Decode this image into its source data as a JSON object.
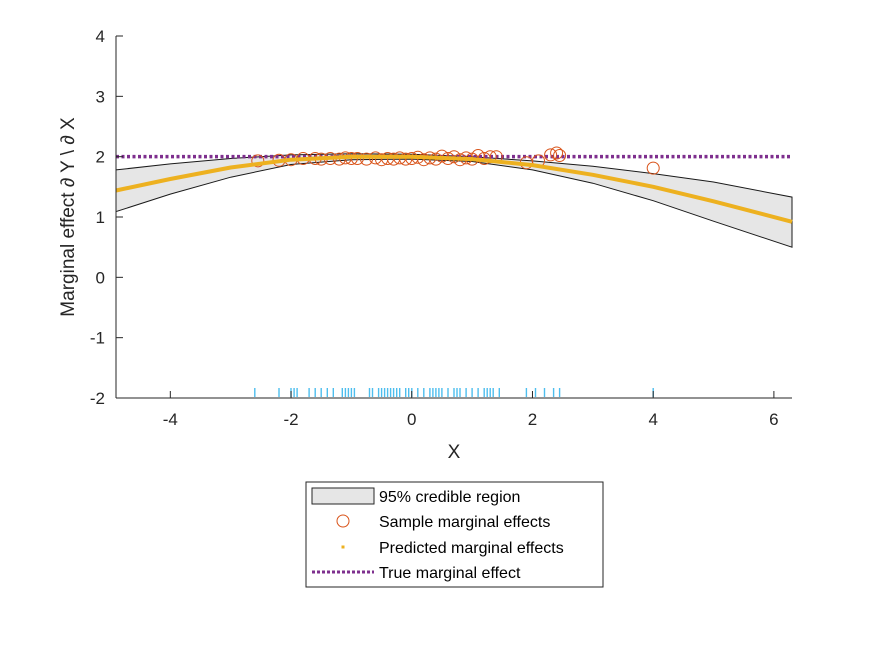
{
  "chart_data": {
    "type": "line",
    "xlabel": "X",
    "ylabel": "Marginal effect ∂ Y \\ ∂ X",
    "xlim": [
      -4.9,
      6.3
    ],
    "ylim": [
      -2,
      4
    ],
    "xticks": [
      -4,
      -2,
      0,
      2,
      4,
      6
    ],
    "yticks": [
      -2,
      -1,
      0,
      1,
      2,
      3,
      4
    ],
    "xtick_labels": [
      "-4",
      "-2",
      "0",
      "2",
      "4",
      "6"
    ],
    "ytick_labels": [
      "-2",
      "-1",
      "0",
      "1",
      "2",
      "3",
      "4"
    ],
    "grid": false,
    "legend_position": "below plot",
    "credible_region": {
      "name": "95% credible region",
      "color": "#e6e6e6",
      "x": [
        -4.9,
        -4.0,
        -3.0,
        -2.0,
        -1.0,
        0.0,
        1.0,
        2.0,
        3.0,
        4.0,
        5.0,
        6.3
      ],
      "upper": [
        1.78,
        1.88,
        1.97,
        2.03,
        2.05,
        2.04,
        2.0,
        1.93,
        1.84,
        1.72,
        1.58,
        1.33
      ],
      "lower": [
        1.09,
        1.38,
        1.66,
        1.87,
        1.95,
        1.96,
        1.92,
        1.78,
        1.56,
        1.27,
        0.93,
        0.5
      ]
    },
    "series": [
      {
        "name": "Predicted marginal effects",
        "color": "#edb120",
        "x": [
          -4.9,
          -4.0,
          -3.0,
          -2.0,
          -1.0,
          0.0,
          1.0,
          2.0,
          3.0,
          4.0,
          5.0,
          6.3
        ],
        "y": [
          1.44,
          1.63,
          1.82,
          1.95,
          2.0,
          2.0,
          1.96,
          1.86,
          1.7,
          1.5,
          1.26,
          0.92
        ]
      },
      {
        "name": "True marginal effect",
        "color": "#7e2f8e",
        "x": [
          -4.9,
          6.3
        ],
        "y": [
          2.0,
          2.0
        ]
      }
    ],
    "sample_points": {
      "name": "Sample marginal effects",
      "color": "#d95319",
      "x": [
        -2.55,
        -2.2,
        -2.0,
        -1.8,
        -1.6,
        -1.5,
        -1.35,
        -1.2,
        -1.1,
        -1.0,
        -0.9,
        -0.75,
        -0.6,
        -0.5,
        -0.4,
        -0.3,
        -0.2,
        -0.1,
        0.0,
        0.1,
        0.2,
        0.3,
        0.4,
        0.5,
        0.6,
        0.7,
        0.8,
        0.9,
        1.0,
        1.1,
        1.2,
        1.3,
        1.4,
        1.9,
        2.1,
        2.3,
        2.4,
        2.45,
        4.0
      ],
      "y": [
        1.93,
        1.94,
        1.95,
        1.97,
        1.97,
        1.96,
        1.97,
        1.96,
        1.98,
        1.97,
        1.97,
        1.96,
        1.98,
        1.95,
        1.97,
        1.96,
        1.98,
        1.96,
        1.97,
        1.99,
        1.95,
        1.98,
        1.96,
        2.01,
        1.97,
        2.0,
        1.95,
        1.98,
        1.96,
        2.02,
        1.97,
        2.0,
        2.0,
        1.9,
        1.93,
        2.03,
        2.06,
        2.02,
        1.81
      ]
    },
    "rug": {
      "color": "#4dbeee",
      "x": [
        -2.6,
        -2.2,
        -2.0,
        -1.95,
        -1.9,
        -1.7,
        -1.6,
        -1.5,
        -1.4,
        -1.3,
        -1.15,
        -1.1,
        -1.05,
        -1.0,
        -0.95,
        -0.7,
        -0.65,
        -0.55,
        -0.5,
        -0.45,
        -0.4,
        -0.35,
        -0.3,
        -0.25,
        -0.2,
        -0.1,
        -0.05,
        0.0,
        0.1,
        0.2,
        0.3,
        0.35,
        0.4,
        0.45,
        0.5,
        0.6,
        0.7,
        0.75,
        0.8,
        0.9,
        1.0,
        1.1,
        1.2,
        1.25,
        1.3,
        1.35,
        1.45,
        1.9,
        2.05,
        2.2,
        2.35,
        2.45,
        4.0
      ]
    },
    "legend": [
      "95% credible region",
      "Sample marginal effects",
      "Predicted marginal effects",
      "True marginal effect"
    ]
  }
}
